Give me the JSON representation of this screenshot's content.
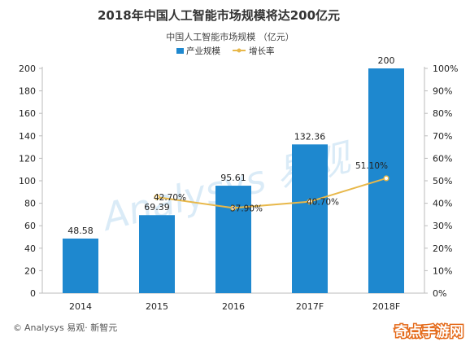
{
  "chart_data": {
    "type": "bar",
    "title": "2018年中国人工智能市场规模将达200亿元",
    "subtitle": "中国人工智能市场规模 （亿元）",
    "categories": [
      "2014",
      "2015",
      "2016",
      "2017F",
      "2018F"
    ],
    "series": [
      {
        "name": "产业规模",
        "type": "bar",
        "axis": "left",
        "color": "#1e88cf",
        "values": [
          48.58,
          69.39,
          95.61,
          132.36,
          200
        ]
      },
      {
        "name": "增长率",
        "type": "line",
        "axis": "right",
        "color": "#e8b84a",
        "values": [
          null,
          42.7,
          37.9,
          40.7,
          51.1
        ]
      }
    ],
    "bar_labels": [
      "48.58",
      "69.39",
      "95.61",
      "132.36",
      "200"
    ],
    "line_labels": [
      "",
      "42.70%",
      "37.90%",
      "40.70%",
      "51.10%"
    ],
    "ylim": [
      0,
      200
    ],
    "y_ticks": [
      "0",
      "20",
      "40",
      "60",
      "80",
      "100",
      "120",
      "140",
      "160",
      "180",
      "200"
    ],
    "y2lim": [
      0,
      100
    ],
    "y2_ticks": [
      "0%",
      "10%",
      "20%",
      "30%",
      "40%",
      "50%",
      "60%",
      "70%",
      "80%",
      "90%",
      "100%"
    ],
    "legend": {
      "position": "top-center"
    },
    "grid": false
  },
  "footer": {
    "copyright": "©",
    "source": "Analysys 易观· 新智元"
  },
  "watermark": {
    "text": "Analysys 易观"
  },
  "corner_logo": {
    "text": "奇点手游网"
  }
}
